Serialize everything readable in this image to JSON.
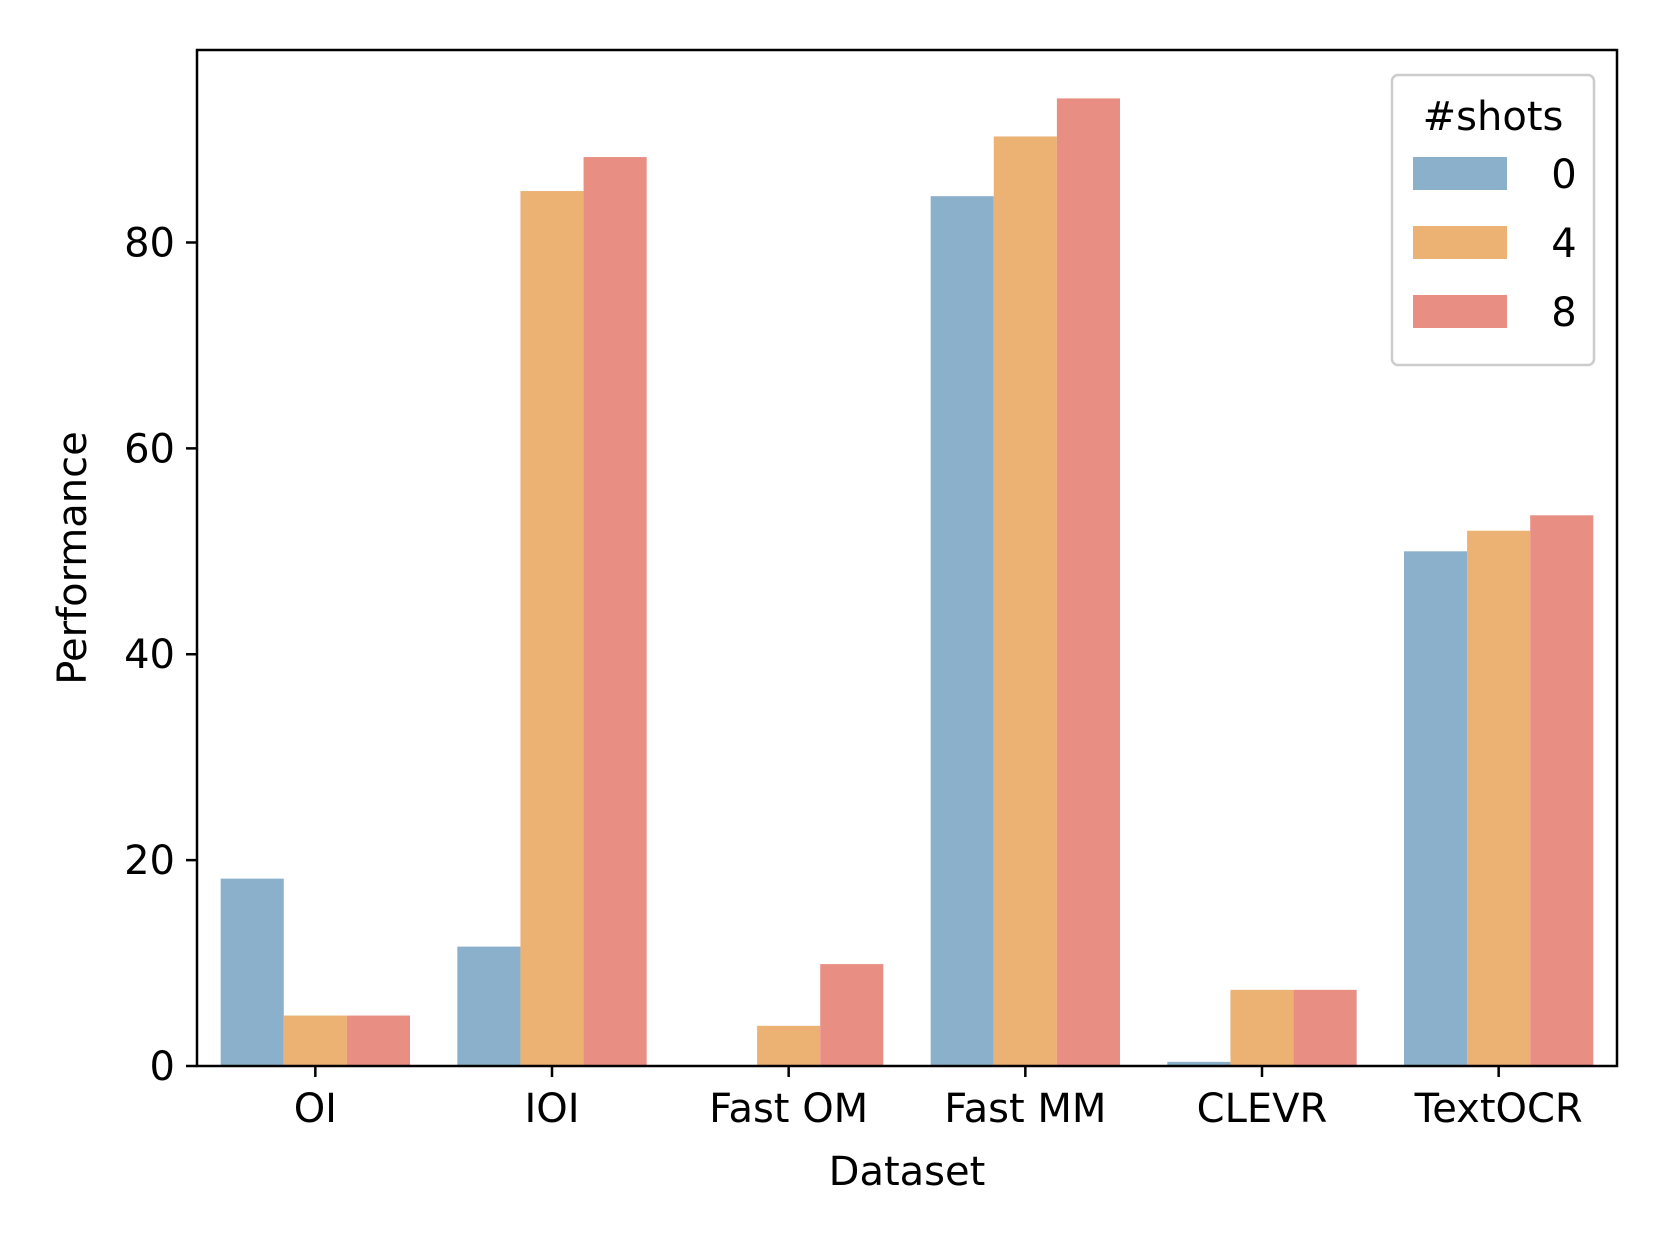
{
  "chart_data": {
    "type": "bar",
    "title": "",
    "xlabel": "Dataset",
    "ylabel": "Performance",
    "categories": [
      "OI",
      "IOI",
      "Fast OM",
      "Fast MM",
      "CLEVR",
      "TextOCR"
    ],
    "series": [
      {
        "name": "0",
        "color": "#8bb0cb",
        "values": [
          18.2,
          11.6,
          0,
          84.5,
          0.4,
          50.0
        ]
      },
      {
        "name": "4",
        "color": "#ebb274",
        "values": [
          4.9,
          85.0,
          3.9,
          90.3,
          7.4,
          52.0
        ]
      },
      {
        "name": "8",
        "color": "#e98e83",
        "values": [
          4.9,
          88.3,
          9.9,
          94.0,
          7.4,
          53.5
        ]
      }
    ],
    "ylim": [
      0,
      98.7
    ],
    "yticks": [
      0,
      20,
      40,
      60,
      80
    ],
    "legend": {
      "title": "#shots",
      "placement": "upper right"
    },
    "grid": false
  }
}
